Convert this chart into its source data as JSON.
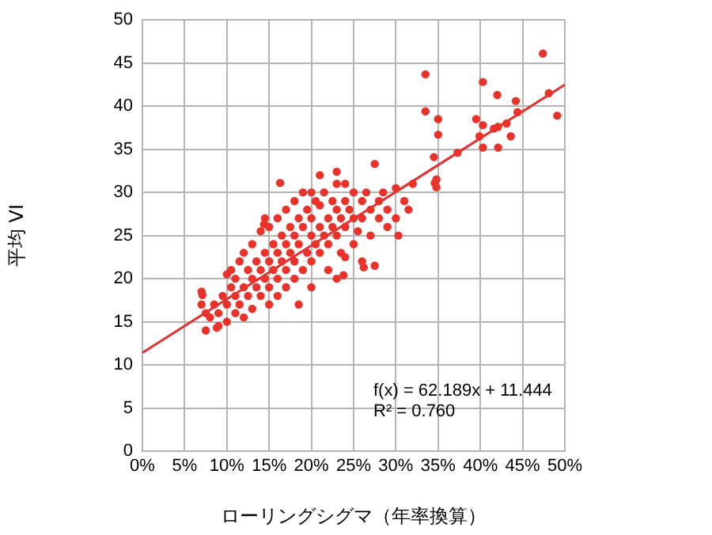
{
  "chart_data": {
    "type": "scatter",
    "xlabel": "ローリングシグマ（年率換算）",
    "ylabel": "平均 VI",
    "xlim": [
      0,
      0.5
    ],
    "ylim": [
      0,
      50
    ],
    "xticks": [
      {
        "value": 0,
        "label": "0%"
      },
      {
        "value": 0.05,
        "label": "5%"
      },
      {
        "value": 0.1,
        "label": "10%"
      },
      {
        "value": 0.15,
        "label": "15%"
      },
      {
        "value": 0.2,
        "label": "20%"
      },
      {
        "value": 0.25,
        "label": "25%"
      },
      {
        "value": 0.3,
        "label": "30%"
      },
      {
        "value": 0.35,
        "label": "35%"
      },
      {
        "value": 0.4,
        "label": "40%"
      },
      {
        "value": 0.45,
        "label": "45%"
      },
      {
        "value": 0.5,
        "label": "50%"
      }
    ],
    "yticks": [
      0,
      5,
      10,
      15,
      20,
      25,
      30,
      35,
      40,
      45,
      50
    ],
    "grid": true,
    "legend": false,
    "marker": "circle",
    "annotations": [
      "f(x) = 62.189x + 11.444",
      "R² = 0.760"
    ],
    "series": [
      {
        "color": "#e8322a",
        "x": [
          0.07,
          0.07,
          0.075,
          0.08,
          0.085,
          0.09,
          0.09,
          0.095,
          0.1,
          0.1,
          0.105,
          0.105,
          0.11,
          0.11,
          0.11,
          0.115,
          0.115,
          0.12,
          0.12,
          0.12,
          0.125,
          0.125,
          0.13,
          0.13,
          0.13,
          0.135,
          0.135,
          0.14,
          0.14,
          0.14,
          0.145,
          0.145,
          0.15,
          0.15,
          0.15,
          0.15,
          0.155,
          0.155,
          0.16,
          0.16,
          0.16,
          0.16,
          0.165,
          0.165,
          0.17,
          0.17,
          0.17,
          0.17,
          0.175,
          0.175,
          0.18,
          0.18,
          0.18,
          0.18,
          0.185,
          0.185,
          0.19,
          0.19,
          0.19,
          0.195,
          0.195,
          0.2,
          0.2,
          0.2,
          0.2,
          0.205,
          0.205,
          0.21,
          0.21,
          0.21,
          0.215,
          0.215,
          0.22,
          0.22,
          0.22,
          0.225,
          0.225,
          0.23,
          0.23,
          0.23,
          0.235,
          0.235,
          0.24,
          0.24,
          0.24,
          0.245,
          0.25,
          0.25,
          0.25,
          0.255,
          0.26,
          0.26,
          0.26,
          0.265,
          0.27,
          0.27,
          0.275,
          0.28,
          0.28,
          0.285,
          0.29,
          0.29,
          0.3,
          0.3,
          0.31,
          0.315,
          0.32,
          0.24,
          0.2,
          0.145,
          0.075,
          0.23,
          0.21,
          0.1,
          0.185,
          0.163,
          0.144,
          0.088,
          0.071,
          0.238,
          0.262,
          0.275,
          0.23,
          0.346,
          0.303,
          0.474,
          0.335,
          0.403,
          0.42,
          0.442,
          0.481,
          0.491,
          0.335,
          0.35,
          0.35,
          0.395,
          0.403,
          0.399,
          0.421,
          0.431,
          0.436,
          0.421,
          0.403,
          0.373,
          0.345,
          0.348,
          0.348,
          0.444,
          0.416
        ],
        "values": [
          18.5,
          17,
          16,
          15.5,
          17,
          14.5,
          16,
          18,
          15,
          17,
          19,
          21,
          16,
          18,
          20,
          22,
          17,
          19,
          23,
          15.5,
          18,
          21,
          20,
          24,
          16.5,
          19,
          22,
          21,
          18,
          25.5,
          20,
          23,
          19,
          22,
          26,
          17,
          24,
          21,
          20,
          23,
          27,
          18,
          25,
          22,
          19,
          24,
          28,
          21,
          26,
          23,
          22,
          25,
          29,
          20,
          27,
          24,
          21,
          26,
          30,
          23,
          28,
          22,
          25,
          27,
          19,
          29,
          24,
          26,
          23,
          28.5,
          25,
          30,
          27,
          24,
          21,
          29,
          26,
          25,
          28,
          31,
          27,
          23,
          26,
          29,
          22.5,
          28,
          27,
          30,
          24,
          25.5,
          29,
          27,
          22,
          30,
          28,
          25,
          21.5,
          29,
          27,
          30,
          28,
          26,
          30.5,
          27,
          29,
          28,
          31,
          31,
          30,
          27,
          14,
          20,
          32,
          20.5,
          17,
          31.1,
          26.3,
          14.3,
          18.1,
          20.4,
          21.3,
          33.3,
          32.4,
          31.1,
          25,
          46.1,
          43.7,
          42.8,
          41.3,
          40.6,
          41.5,
          38.9,
          39.4,
          38.5,
          36.7,
          38.5,
          37.8,
          36.5,
          37.6,
          38,
          36.5,
          35.2,
          35.2,
          34.6,
          34.1,
          31.5,
          30.6,
          39.3,
          37.4
        ]
      },
      {
        "type": "line",
        "color": "#e03030",
        "marker": "none",
        "x": [
          0,
          0.5
        ],
        "values": [
          11.4,
          42.5
        ]
      }
    ]
  }
}
